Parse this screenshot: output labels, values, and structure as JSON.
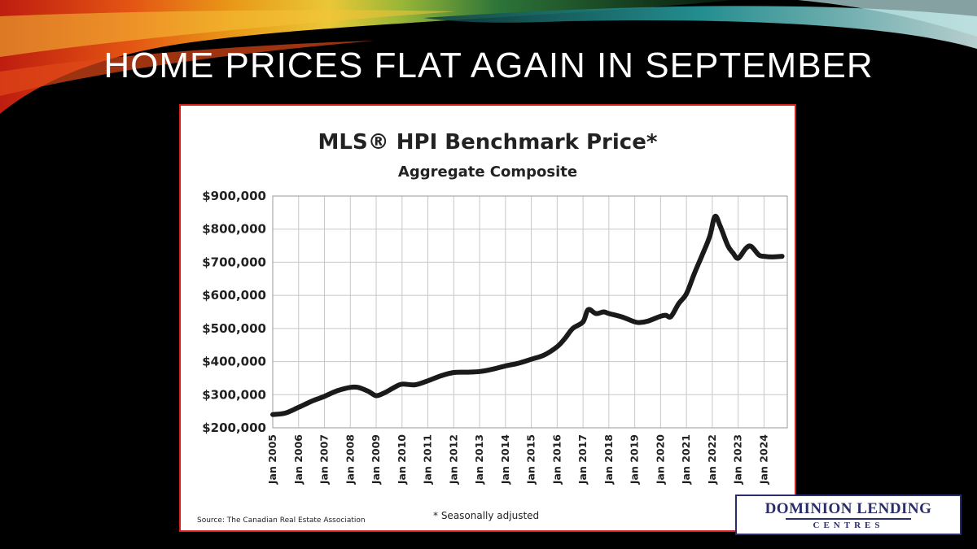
{
  "slide": {
    "title": "HOME PRICES FLAT AGAIN IN SEPTEMBER",
    "logo_line1": "DOMINION LENDING",
    "logo_line2": "CENTRES"
  },
  "colors": {
    "background": "#000000",
    "frame_border": "#d32020",
    "line": "#1a1a1a",
    "grid": "#c8c8c8",
    "logo_navy": "#2a2c6b"
  },
  "chart_data": {
    "type": "line",
    "title": "MLS® HPI Benchmark Price*",
    "subtitle": "Aggregate Composite",
    "source": "Source: The Canadian Real Estate Association",
    "footnote": "* Seasonally adjusted",
    "ylim": [
      200000,
      900000
    ],
    "y_ticks": [
      "$200,000",
      "$300,000",
      "$400,000",
      "$500,000",
      "$600,000",
      "$700,000",
      "$800,000",
      "$900,000"
    ],
    "x_ticks": [
      "Jan 2005",
      "Jan 2006",
      "Jan 2007",
      "Jan 2008",
      "Jan 2009",
      "Jan 2010",
      "Jan 2011",
      "Jan 2012",
      "Jan 2013",
      "Jan 2014",
      "Jan 2015",
      "Jan 2016",
      "Jan 2017",
      "Jan 2018",
      "Jan 2019",
      "Jan 2020",
      "Jan 2021",
      "Jan 2022",
      "Jan 2023",
      "Jan 2024"
    ],
    "grid": true,
    "series": [
      {
        "x": [
          2005.0,
          2005.5,
          2006.0,
          2006.5,
          2007.0,
          2007.5,
          2008.0,
          2008.3,
          2008.7,
          2009.0,
          2009.3,
          2009.7,
          2010.0,
          2010.5,
          2011.0,
          2011.5,
          2012.0,
          2012.5,
          2013.0,
          2013.5,
          2014.0,
          2014.5,
          2015.0,
          2015.5,
          2016.0,
          2016.3,
          2016.6,
          2017.0,
          2017.2,
          2017.5,
          2017.8,
          2018.0,
          2018.5,
          2019.0,
          2019.2,
          2019.5,
          2020.0,
          2020.2,
          2020.4,
          2020.7,
          2021.0,
          2021.3,
          2021.6,
          2021.9,
          2022.1,
          2022.3,
          2022.6,
          2022.8,
          2023.0,
          2023.3,
          2023.5,
          2023.8,
          2024.0,
          2024.3,
          2024.7
        ],
        "y": [
          240000,
          245000,
          262000,
          280000,
          295000,
          312000,
          322000,
          322000,
          310000,
          297000,
          305000,
          322000,
          332000,
          330000,
          342000,
          357000,
          367000,
          368000,
          370000,
          377000,
          387000,
          395000,
          407000,
          420000,
          445000,
          470000,
          500000,
          520000,
          557000,
          545000,
          550000,
          545000,
          535000,
          520000,
          518000,
          522000,
          537000,
          540000,
          536000,
          575000,
          605000,
          665000,
          720000,
          778000,
          838000,
          810000,
          750000,
          728000,
          712000,
          742000,
          748000,
          722000,
          718000,
          716000,
          718000
        ]
      }
    ]
  }
}
